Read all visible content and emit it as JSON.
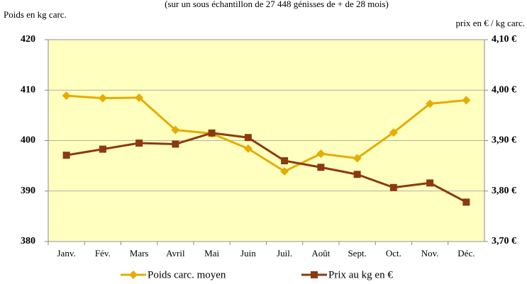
{
  "chart_data": {
    "type": "line",
    "subtitle": "(sur un sous échantillon de  27 448 génisses de + de 28 mois)",
    "ylabel": "Poids en kg carc.",
    "y2label": "prix en € / kg carc.",
    "categories": [
      "Janv.",
      "Fév.",
      "Mars",
      "Avril",
      "Mai",
      "Juin",
      "Juil.",
      "Août",
      "Sept.",
      "Oct.",
      "Nov.",
      "Déc."
    ],
    "series": [
      {
        "name": "Poids carc. moyen",
        "color": "#e6ac00",
        "marker": "diamond",
        "values": [
          408.9,
          408.4,
          408.5,
          402.1,
          401.4,
          398.4,
          393.9,
          397.4,
          396.5,
          401.6,
          407.3,
          408.0
        ]
      },
      {
        "name": "Prix au kg en €",
        "color": "#8b3a10",
        "marker": "square",
        "axis": "y2",
        "values": [
          3.871,
          3.883,
          3.895,
          3.893,
          3.915,
          3.906,
          3.86,
          3.847,
          3.833,
          3.807,
          3.816,
          3.778
        ]
      }
    ],
    "ylim": [
      380,
      420
    ],
    "yticks": [
      380,
      390,
      400,
      410,
      420
    ],
    "y2lim": [
      3.7,
      4.1
    ],
    "y2ticks": [
      {
        "value": 3.7,
        "label": "3,70 €"
      },
      {
        "value": 3.8,
        "label": "3,80 €"
      },
      {
        "value": 3.9,
        "label": "3,90 €"
      },
      {
        "value": 4.0,
        "label": "4,00 €"
      },
      {
        "value": 4.1,
        "label": "4,10 €"
      }
    ],
    "grid": true,
    "legend": "bottom",
    "plot_background": "#ffffc0",
    "tick_color": "#b38600"
  }
}
